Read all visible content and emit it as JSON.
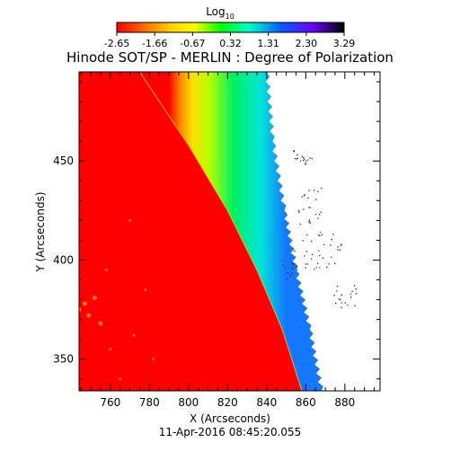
{
  "title": "Hinode SOT/SP - MERLIN : Degree of Polarization",
  "colorbar": {
    "label": "Log",
    "label_sub": "10",
    "ticks": [
      "-2.65",
      "-1.66",
      "-0.67",
      "0.32",
      "1.31",
      "2.30",
      "3.29"
    ],
    "range": [
      -2.65,
      3.29
    ],
    "colormap": [
      "#ff0000",
      "#ff6a00",
      "#ffd200",
      "#ffff00",
      "#00ff00",
      "#00ffcc",
      "#0060ff",
      "#6a00ff",
      "#000000"
    ]
  },
  "date_label": "11-Apr-2016 08:45:20.055",
  "chart_data": {
    "type": "heatmap",
    "xlabel": "X (Arcseconds)",
    "ylabel": "Y (Arcseconds)",
    "xlim": [
      744,
      898
    ],
    "ylim": [
      334,
      495
    ],
    "xticks": [
      760,
      780,
      800,
      820,
      840,
      860,
      880
    ],
    "yticks": [
      350,
      400,
      450
    ],
    "limb_edge": [
      [
        775,
        495
      ],
      [
        800,
        458
      ],
      [
        820,
        425
      ],
      [
        835,
        395
      ],
      [
        848,
        365
      ],
      [
        858,
        334
      ]
    ],
    "scan_edge": [
      [
        840,
        495
      ],
      [
        843,
        460
      ],
      [
        849,
        425
      ],
      [
        855,
        395
      ],
      [
        862,
        365
      ],
      [
        868,
        334
      ]
    ]
  }
}
